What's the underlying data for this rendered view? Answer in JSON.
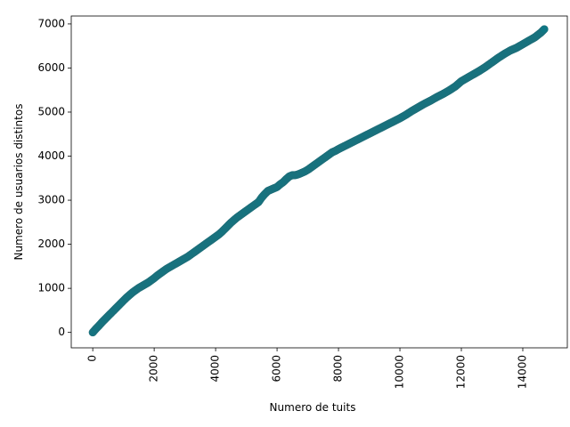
{
  "chart_data": {
    "type": "scatter",
    "xlabel": "Numero de tuits",
    "ylabel": "Numero de usuarios distintos",
    "xlim": [
      -700,
      15450
    ],
    "ylim": [
      -350,
      7180
    ],
    "x_ticks": [
      0,
      2000,
      4000,
      6000,
      8000,
      10000,
      12000,
      14000
    ],
    "x_tick_labels": [
      "0",
      "2000",
      "4000",
      "6000",
      "8000",
      "10000",
      "12000",
      "14000"
    ],
    "y_ticks": [
      0,
      1000,
      2000,
      3000,
      4000,
      5000,
      6000,
      7000
    ],
    "y_tick_labels": [
      "0",
      "1000",
      "2000",
      "3000",
      "4000",
      "5000",
      "6000",
      "7000"
    ],
    "x_tick_rotation": "vertical",
    "grid": false,
    "marker_color": "#0e7785",
    "marker_edge_color": "#1f6f7a",
    "series": [
      {
        "points": [
          [
            0,
            0
          ],
          [
            100,
            80
          ],
          [
            200,
            150
          ],
          [
            300,
            230
          ],
          [
            400,
            300
          ],
          [
            500,
            370
          ],
          [
            600,
            440
          ],
          [
            700,
            510
          ],
          [
            800,
            580
          ],
          [
            900,
            650
          ],
          [
            1000,
            720
          ],
          [
            1100,
            790
          ],
          [
            1200,
            850
          ],
          [
            1300,
            910
          ],
          [
            1400,
            960
          ],
          [
            1500,
            1010
          ],
          [
            1600,
            1050
          ],
          [
            1700,
            1090
          ],
          [
            1800,
            1130
          ],
          [
            1900,
            1180
          ],
          [
            2000,
            1230
          ],
          [
            2100,
            1290
          ],
          [
            2200,
            1340
          ],
          [
            2300,
            1390
          ],
          [
            2400,
            1440
          ],
          [
            2500,
            1480
          ],
          [
            2600,
            1520
          ],
          [
            2700,
            1560
          ],
          [
            2800,
            1600
          ],
          [
            2900,
            1640
          ],
          [
            3000,
            1680
          ],
          [
            3100,
            1720
          ],
          [
            3200,
            1770
          ],
          [
            3300,
            1820
          ],
          [
            3400,
            1870
          ],
          [
            3500,
            1920
          ],
          [
            3600,
            1970
          ],
          [
            3700,
            2020
          ],
          [
            3800,
            2070
          ],
          [
            3900,
            2120
          ],
          [
            4000,
            2170
          ],
          [
            4100,
            2220
          ],
          [
            4200,
            2280
          ],
          [
            4300,
            2350
          ],
          [
            4400,
            2420
          ],
          [
            4500,
            2490
          ],
          [
            4600,
            2550
          ],
          [
            4700,
            2610
          ],
          [
            4800,
            2660
          ],
          [
            4900,
            2710
          ],
          [
            5000,
            2760
          ],
          [
            5100,
            2810
          ],
          [
            5200,
            2860
          ],
          [
            5300,
            2910
          ],
          [
            5400,
            2960
          ],
          [
            5500,
            3060
          ],
          [
            5600,
            3140
          ],
          [
            5700,
            3210
          ],
          [
            5800,
            3240
          ],
          [
            5900,
            3270
          ],
          [
            6000,
            3300
          ],
          [
            6100,
            3360
          ],
          [
            6200,
            3410
          ],
          [
            6300,
            3480
          ],
          [
            6400,
            3540
          ],
          [
            6500,
            3570
          ],
          [
            6600,
            3570
          ],
          [
            6700,
            3590
          ],
          [
            6800,
            3620
          ],
          [
            6900,
            3650
          ],
          [
            7000,
            3690
          ],
          [
            7100,
            3740
          ],
          [
            7200,
            3790
          ],
          [
            7300,
            3840
          ],
          [
            7400,
            3890
          ],
          [
            7500,
            3940
          ],
          [
            7600,
            3990
          ],
          [
            7700,
            4040
          ],
          [
            7800,
            4090
          ],
          [
            7900,
            4120
          ],
          [
            8000,
            4160
          ],
          [
            8200,
            4230
          ],
          [
            8400,
            4300
          ],
          [
            8600,
            4370
          ],
          [
            8800,
            4440
          ],
          [
            9000,
            4510
          ],
          [
            9200,
            4580
          ],
          [
            9400,
            4650
          ],
          [
            9600,
            4720
          ],
          [
            9800,
            4790
          ],
          [
            10000,
            4860
          ],
          [
            10200,
            4940
          ],
          [
            10400,
            5030
          ],
          [
            10600,
            5110
          ],
          [
            10800,
            5190
          ],
          [
            11000,
            5260
          ],
          [
            11200,
            5340
          ],
          [
            11400,
            5410
          ],
          [
            11600,
            5490
          ],
          [
            11800,
            5580
          ],
          [
            12000,
            5700
          ],
          [
            12200,
            5780
          ],
          [
            12400,
            5860
          ],
          [
            12600,
            5940
          ],
          [
            12800,
            6030
          ],
          [
            13000,
            6130
          ],
          [
            13200,
            6230
          ],
          [
            13400,
            6320
          ],
          [
            13600,
            6400
          ],
          [
            13800,
            6460
          ],
          [
            14000,
            6540
          ],
          [
            14200,
            6620
          ],
          [
            14400,
            6700
          ],
          [
            14600,
            6810
          ],
          [
            14700,
            6880
          ]
        ]
      }
    ]
  }
}
